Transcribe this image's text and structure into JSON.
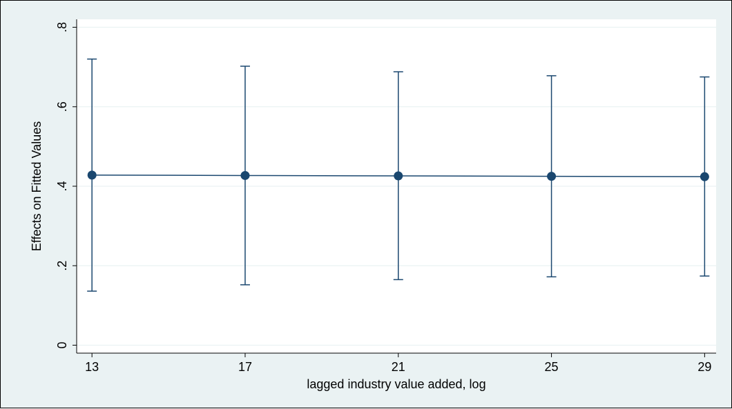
{
  "chart_data": {
    "type": "line",
    "title": "",
    "xlabel": "lagged industry value added, log",
    "ylabel": "Effects on Fitted Values",
    "x": [
      13,
      17,
      21,
      25,
      29
    ],
    "x_ticks": [
      13,
      17,
      21,
      25,
      29
    ],
    "x_tick_labels": [
      "13",
      "17",
      "21",
      "25",
      "29"
    ],
    "xlim": [
      12.6,
      29.3
    ],
    "y_ticks": [
      0,
      0.2,
      0.4,
      0.6,
      0.8
    ],
    "y_tick_labels": [
      "0",
      ".2",
      ".4",
      ".6",
      ".8"
    ],
    "ylim": [
      -0.02,
      0.82
    ],
    "grid": "horizontal",
    "legend": "none",
    "series": [
      {
        "y": [
          0.428,
          0.427,
          0.426,
          0.425,
          0.424
        ],
        "ci_low": [
          0.136,
          0.152,
          0.165,
          0.172,
          0.174
        ],
        "ci_high": [
          0.72,
          0.702,
          0.688,
          0.678,
          0.675
        ]
      }
    ],
    "colors": {
      "series": "#1a476f",
      "plot_background": "#ffffff",
      "outer_background": "#eaf2f3",
      "gridline": "#eaf2f3"
    }
  }
}
